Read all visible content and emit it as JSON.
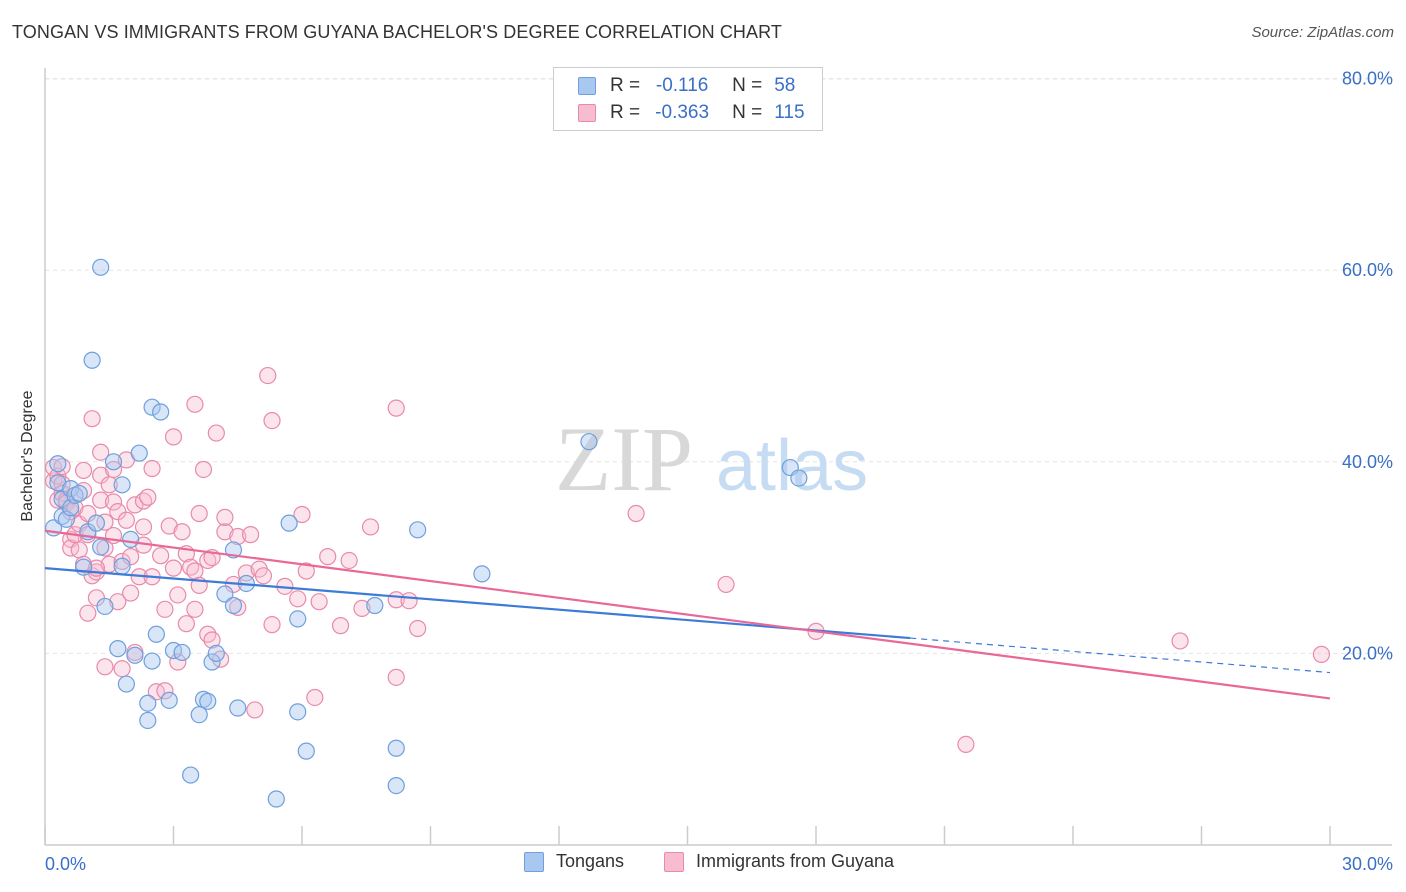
{
  "header": {
    "title": "TONGAN VS IMMIGRANTS FROM GUYANA BACHELOR'S DEGREE CORRELATION CHART",
    "source": "Source: ZipAtlas.com"
  },
  "watermark": {
    "zip": "ZIP",
    "atlas": "atlas"
  },
  "legend": {
    "r_label": "R =",
    "n_label": "N =",
    "items": [
      {
        "r": "-0.116",
        "n": "58",
        "color": "#a9c8f0",
        "border": "#6f9fdc"
      },
      {
        "r": "-0.363",
        "n": "115",
        "color": "#f8bcd0",
        "border": "#e88aaa"
      }
    ]
  },
  "bottom_legend": {
    "items": [
      {
        "label": "Tongans",
        "color": "#a9c8f0",
        "border": "#6f9fdc"
      },
      {
        "label": "Immigrants from Guyana",
        "color": "#f8bcd0",
        "border": "#e88aaa"
      }
    ]
  },
  "chart_data": {
    "type": "scatter",
    "title": "TONGAN VS IMMIGRANTS FROM GUYANA BACHELOR'S DEGREE CORRELATION CHART",
    "xlabel": "",
    "ylabel": "Bachelor's Degree",
    "xlim": [
      0,
      30
    ],
    "ylim": [
      0,
      82
    ],
    "x_tick_labels": [
      "0.0%",
      "30.0%"
    ],
    "y_ticks": [
      20,
      40,
      60,
      80
    ],
    "y_tick_labels": [
      "20.0%",
      "40.0%",
      "60.0%",
      "80.0%"
    ],
    "grid": true,
    "series": [
      {
        "name": "Tongans",
        "color": "#6f9fdc",
        "line_color": "#3d7bd8",
        "trend": {
          "x0": 0,
          "y0": 28.9,
          "x1": 20.2,
          "y1": 21.6,
          "dash_to_x": 30,
          "dash_to_y": 18.0
        },
        "points": [
          [
            0.2,
            33.1
          ],
          [
            0.3,
            37.8
          ],
          [
            0.3,
            39.8
          ],
          [
            0.4,
            34.3
          ],
          [
            0.4,
            36.1
          ],
          [
            0.5,
            34.0
          ],
          [
            0.6,
            35.2
          ],
          [
            0.6,
            37.2
          ],
          [
            0.7,
            36.5
          ],
          [
            0.8,
            36.7
          ],
          [
            0.9,
            29.0
          ],
          [
            1.0,
            32.7
          ],
          [
            1.2,
            33.6
          ],
          [
            1.3,
            60.3
          ],
          [
            1.1,
            50.6
          ],
          [
            1.3,
            31.1
          ],
          [
            1.4,
            24.9
          ],
          [
            1.6,
            40.0
          ],
          [
            1.7,
            20.5
          ],
          [
            1.8,
            37.6
          ],
          [
            1.8,
            29.1
          ],
          [
            1.9,
            16.8
          ],
          [
            2.0,
            31.9
          ],
          [
            2.1,
            19.8
          ],
          [
            2.2,
            40.9
          ],
          [
            2.4,
            14.8
          ],
          [
            2.4,
            13.0
          ],
          [
            2.5,
            19.2
          ],
          [
            2.6,
            22.0
          ],
          [
            2.5,
            45.7
          ],
          [
            2.7,
            45.2
          ],
          [
            2.9,
            15.1
          ],
          [
            3.0,
            20.3
          ],
          [
            3.2,
            20.1
          ],
          [
            3.4,
            7.3
          ],
          [
            3.6,
            13.6
          ],
          [
            3.7,
            15.2
          ],
          [
            3.8,
            15.0
          ],
          [
            3.9,
            19.1
          ],
          [
            4.0,
            20.0
          ],
          [
            4.2,
            26.2
          ],
          [
            4.4,
            25.0
          ],
          [
            4.4,
            30.8
          ],
          [
            4.5,
            14.3
          ],
          [
            4.7,
            27.3
          ],
          [
            5.4,
            4.8
          ],
          [
            5.7,
            33.6
          ],
          [
            5.9,
            23.6
          ],
          [
            5.9,
            13.9
          ],
          [
            6.1,
            9.8
          ],
          [
            7.7,
            25.0
          ],
          [
            8.2,
            10.1
          ],
          [
            8.2,
            6.2
          ],
          [
            8.7,
            32.9
          ],
          [
            10.2,
            28.3
          ],
          [
            12.7,
            42.1
          ],
          [
            17.4,
            39.4
          ],
          [
            17.6,
            38.3
          ]
        ]
      },
      {
        "name": "Immigrants from Guyana",
        "color": "#e88aaa",
        "line_color": "#e86898",
        "trend": {
          "x0": 0,
          "y0": 32.8,
          "x1": 30,
          "y1": 15.3
        },
        "points": [
          [
            0.2,
            38.0
          ],
          [
            0.2,
            39.4
          ],
          [
            0.3,
            36.0
          ],
          [
            0.3,
            38.5
          ],
          [
            0.4,
            37.7
          ],
          [
            0.4,
            39.5
          ],
          [
            0.4,
            36.7
          ],
          [
            0.5,
            36.0
          ],
          [
            0.5,
            35.7
          ],
          [
            0.6,
            34.8
          ],
          [
            0.6,
            31.9
          ],
          [
            0.6,
            31.0
          ],
          [
            0.7,
            32.4
          ],
          [
            0.7,
            35.2
          ],
          [
            0.8,
            33.5
          ],
          [
            0.8,
            30.8
          ],
          [
            0.9,
            29.3
          ],
          [
            0.9,
            39.1
          ],
          [
            1.0,
            34.6
          ],
          [
            1.0,
            24.2
          ],
          [
            1.0,
            32.4
          ],
          [
            1.1,
            28.1
          ],
          [
            1.1,
            44.5
          ],
          [
            1.2,
            28.5
          ],
          [
            1.2,
            25.8
          ],
          [
            1.3,
            36.0
          ],
          [
            1.3,
            38.6
          ],
          [
            1.3,
            41.0
          ],
          [
            1.4,
            33.7
          ],
          [
            1.4,
            18.6
          ],
          [
            1.4,
            31.0
          ],
          [
            1.5,
            37.6
          ],
          [
            1.5,
            29.3
          ],
          [
            1.6,
            35.8
          ],
          [
            1.6,
            32.3
          ],
          [
            1.6,
            39.2
          ],
          [
            1.7,
            25.4
          ],
          [
            1.7,
            34.8
          ],
          [
            1.8,
            18.4
          ],
          [
            1.8,
            29.6
          ],
          [
            1.9,
            33.9
          ],
          [
            1.9,
            40.2
          ],
          [
            2.0,
            26.3
          ],
          [
            2.0,
            30.1
          ],
          [
            2.1,
            35.5
          ],
          [
            2.1,
            20.1
          ],
          [
            2.2,
            28.0
          ],
          [
            2.3,
            33.2
          ],
          [
            2.3,
            35.9
          ],
          [
            2.3,
            31.3
          ],
          [
            2.4,
            36.3
          ],
          [
            2.5,
            28.0
          ],
          [
            2.5,
            39.3
          ],
          [
            2.6,
            16.0
          ],
          [
            2.8,
            24.6
          ],
          [
            2.8,
            16.1
          ],
          [
            2.9,
            33.3
          ],
          [
            3.0,
            28.9
          ],
          [
            3.0,
            42.6
          ],
          [
            3.1,
            26.1
          ],
          [
            3.1,
            19.1
          ],
          [
            3.2,
            32.7
          ],
          [
            3.3,
            30.4
          ],
          [
            3.4,
            29.0
          ],
          [
            3.5,
            24.6
          ],
          [
            3.5,
            28.6
          ],
          [
            3.5,
            46.0
          ],
          [
            3.6,
            34.6
          ],
          [
            3.6,
            27.1
          ],
          [
            3.7,
            39.2
          ],
          [
            3.8,
            22.0
          ],
          [
            3.8,
            29.7
          ],
          [
            3.9,
            21.4
          ],
          [
            4.0,
            43.0
          ],
          [
            4.1,
            19.4
          ],
          [
            4.2,
            32.7
          ],
          [
            4.2,
            34.2
          ],
          [
            4.4,
            27.2
          ],
          [
            4.5,
            32.2
          ],
          [
            4.5,
            24.8
          ],
          [
            4.7,
            28.4
          ],
          [
            4.8,
            32.4
          ],
          [
            4.9,
            14.1
          ],
          [
            5.0,
            28.8
          ],
          [
            5.1,
            28.1
          ],
          [
            5.2,
            49.0
          ],
          [
            5.3,
            23.0
          ],
          [
            5.3,
            44.3
          ],
          [
            5.6,
            27.0
          ],
          [
            5.9,
            25.7
          ],
          [
            6.0,
            34.5
          ],
          [
            6.1,
            28.6
          ],
          [
            6.3,
            15.4
          ],
          [
            6.4,
            25.4
          ],
          [
            6.6,
            30.1
          ],
          [
            6.9,
            22.9
          ],
          [
            7.1,
            29.7
          ],
          [
            7.4,
            24.7
          ],
          [
            7.6,
            33.2
          ],
          [
            8.2,
            17.5
          ],
          [
            8.2,
            25.6
          ],
          [
            8.5,
            25.5
          ],
          [
            8.7,
            22.6
          ],
          [
            8.2,
            45.6
          ],
          [
            13.8,
            34.6
          ],
          [
            15.9,
            27.2
          ],
          [
            18.0,
            22.3
          ],
          [
            21.5,
            10.5
          ],
          [
            26.5,
            21.3
          ],
          [
            29.8,
            19.9
          ],
          [
            3.9,
            30.0
          ],
          [
            2.7,
            30.2
          ],
          [
            1.2,
            28.9
          ],
          [
            0.9,
            37.0
          ],
          [
            3.3,
            23.1
          ]
        ]
      }
    ]
  }
}
